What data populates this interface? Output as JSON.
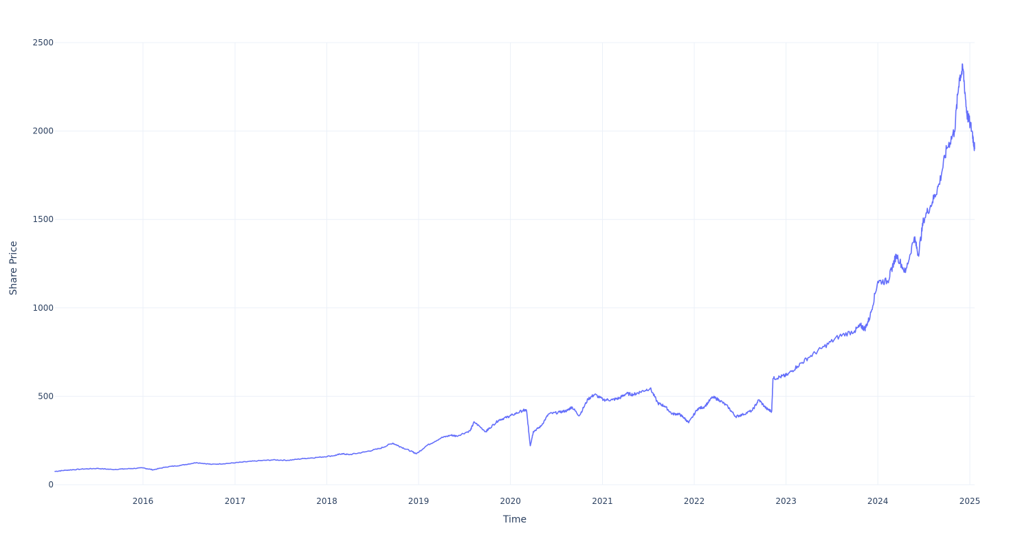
{
  "chart_data": {
    "type": "line",
    "title": "",
    "xlabel": "Time",
    "ylabel": "Share Price",
    "grid": true,
    "legend": "none",
    "xlim": [
      "2015-01-16",
      "2025-01-20"
    ],
    "ylim": [
      0,
      2500
    ],
    "x_ticks": [
      "2016",
      "2017",
      "2018",
      "2019",
      "2020",
      "2021",
      "2022",
      "2023",
      "2024",
      "2025"
    ],
    "y_ticks": [
      0,
      500,
      1000,
      1500,
      2000,
      2500
    ],
    "series": [
      {
        "name": "",
        "color": "#636efa",
        "x": [
          "2015-01-16",
          "2015-03-01",
          "2015-05-01",
          "2015-07-01",
          "2015-09-01",
          "2015-11-01",
          "2016-01-01",
          "2016-02-10",
          "2016-04-01",
          "2016-06-01",
          "2016-08-01",
          "2016-10-01",
          "2016-12-01",
          "2017-02-01",
          "2017-04-01",
          "2017-06-01",
          "2017-08-01",
          "2017-10-01",
          "2017-12-01",
          "2018-02-01",
          "2018-03-01",
          "2018-04-01",
          "2018-06-01",
          "2018-08-01",
          "2018-09-20",
          "2018-10-20",
          "2018-12-01",
          "2018-12-24",
          "2019-02-01",
          "2019-04-01",
          "2019-05-10",
          "2019-06-01",
          "2019-07-25",
          "2019-08-10",
          "2019-09-25",
          "2019-10-10",
          "2019-11-15",
          "2019-12-15",
          "2020-01-10",
          "2020-02-20",
          "2020-03-05",
          "2020-03-20",
          "2020-04-01",
          "2020-05-01",
          "2020-06-01",
          "2020-07-15",
          "2020-08-15",
          "2020-09-01",
          "2020-10-01",
          "2020-11-05",
          "2020-12-01",
          "2021-01-05",
          "2021-02-10",
          "2021-03-10",
          "2021-04-05",
          "2021-05-05",
          "2021-06-01",
          "2021-07-10",
          "2021-08-10",
          "2021-09-05",
          "2021-10-05",
          "2021-11-01",
          "2021-11-20",
          "2021-12-10",
          "2022-01-15",
          "2022-02-10",
          "2022-03-15",
          "2022-04-10",
          "2022-05-15",
          "2022-06-15",
          "2022-07-10",
          "2022-08-20",
          "2022-09-15",
          "2022-10-15",
          "2022-11-05",
          "2022-11-10",
          "2022-12-10",
          "2023-01-05",
          "2023-02-15",
          "2023-04-01",
          "2023-06-01",
          "2023-08-01",
          "2023-10-01",
          "2023-10-25",
          "2023-11-10",
          "2023-12-01",
          "2024-01-01",
          "2024-02-10",
          "2024-02-25",
          "2024-03-15",
          "2024-04-20",
          "2024-05-25",
          "2024-06-10",
          "2024-07-01",
          "2024-08-05",
          "2024-09-01",
          "2024-10-01",
          "2024-11-01",
          "2024-11-20",
          "2024-12-05",
          "2024-12-20",
          "2025-01-10",
          "2025-01-20"
        ],
        "values": [
          75,
          82,
          88,
          92,
          86,
          90,
          95,
          84,
          100,
          110,
          125,
          115,
          120,
          128,
          135,
          140,
          138,
          148,
          155,
          165,
          175,
          170,
          185,
          205,
          235,
          215,
          190,
          175,
          220,
          265,
          280,
          275,
          305,
          355,
          300,
          320,
          365,
          380,
          395,
          420,
          420,
          220,
          300,
          330,
          400,
          410,
          420,
          440,
          390,
          485,
          510,
          480,
          480,
          490,
          515,
          510,
          525,
          545,
          460,
          445,
          400,
          400,
          380,
          350,
          430,
          440,
          495,
          480,
          440,
          385,
          395,
          420,
          480,
          430,
          415,
          600,
          610,
          620,
          670,
          720,
          780,
          840,
          870,
          900,
          880,
          950,
          1150,
          1150,
          1220,
          1300,
          1200,
          1400,
          1300,
          1500,
          1600,
          1700,
          1900,
          2000,
          2300,
          2350,
          2100,
          2000,
          1900
        ]
      }
    ]
  }
}
